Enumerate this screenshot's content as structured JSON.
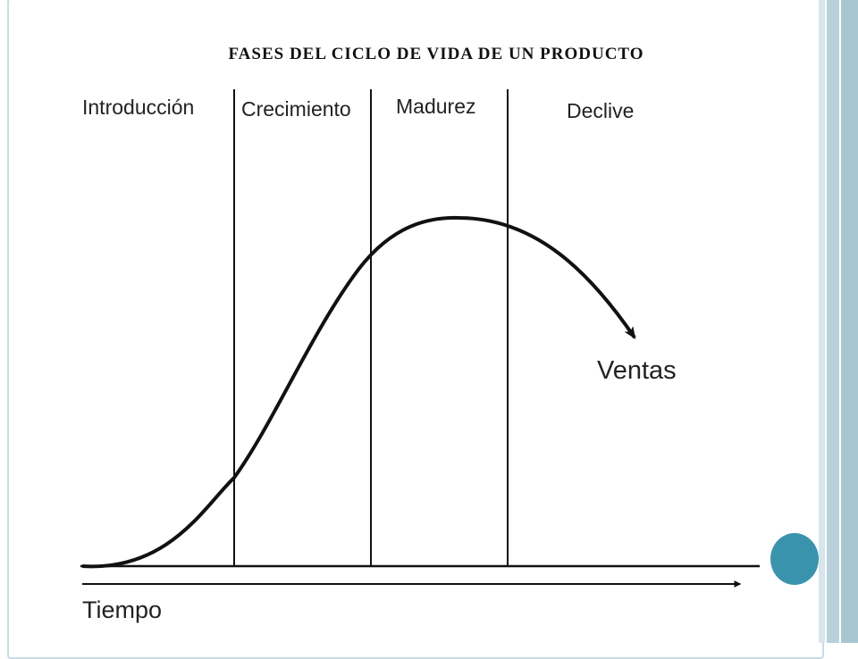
{
  "title": "FASES DEL CICLO DE VIDA DE UN PRODUCTO",
  "phases": [
    "Introducción",
    "Crecimiento",
    "Madurez",
    "Declive"
  ],
  "curve_label": "Ventas",
  "axis_label": "Tiempo",
  "colors": {
    "accent": "#3a93ad",
    "border": "#c9dce4",
    "line": "#111111"
  }
}
